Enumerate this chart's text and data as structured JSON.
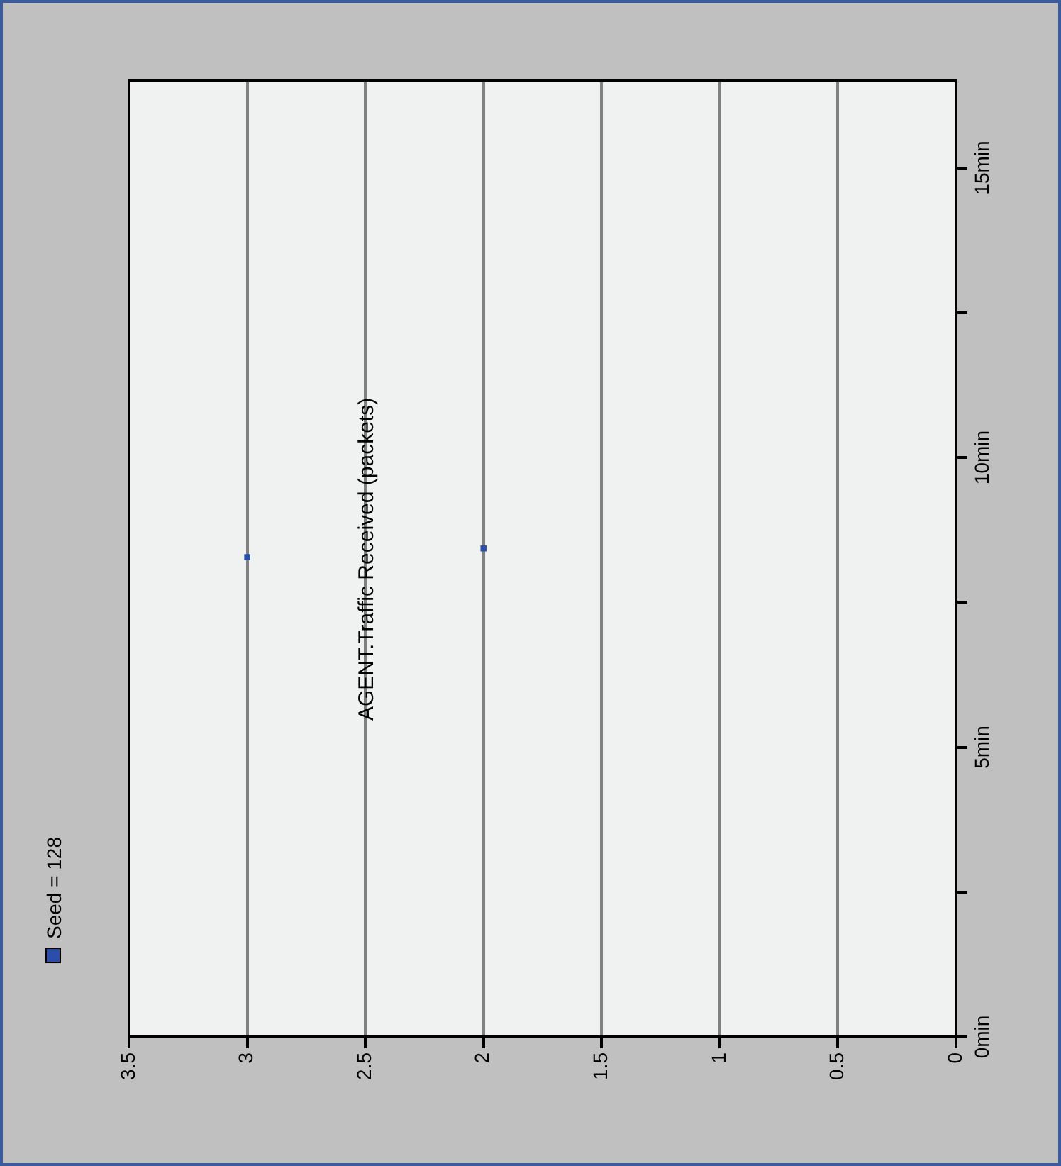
{
  "chart_data": {
    "type": "scatter",
    "title": "AGENT.Traffic Received (packets)",
    "series": [
      {
        "name": "Seed = 128",
        "color": "#2b4fa8",
        "x": [
          3,
          2
        ],
        "values": [
          8.28,
          8.43
        ]
      }
    ],
    "xlim": [
      3.5,
      0
    ],
    "xticks": [
      3.5,
      3,
      2.5,
      2,
      1.5,
      1,
      0.5,
      0
    ],
    "ylim": [
      0,
      16.5
    ],
    "yticks": [
      {
        "value": 0,
        "label": "0min"
      },
      {
        "value": 2.5,
        "label": null
      },
      {
        "value": 5,
        "label": "5min"
      },
      {
        "value": 7.5,
        "label": null
      },
      {
        "value": 10,
        "label": "10min"
      },
      {
        "value": 12.5,
        "label": null
      },
      {
        "value": 15,
        "label": "15min"
      }
    ],
    "grid": "x",
    "legend": "bottom left",
    "marker": "square"
  }
}
